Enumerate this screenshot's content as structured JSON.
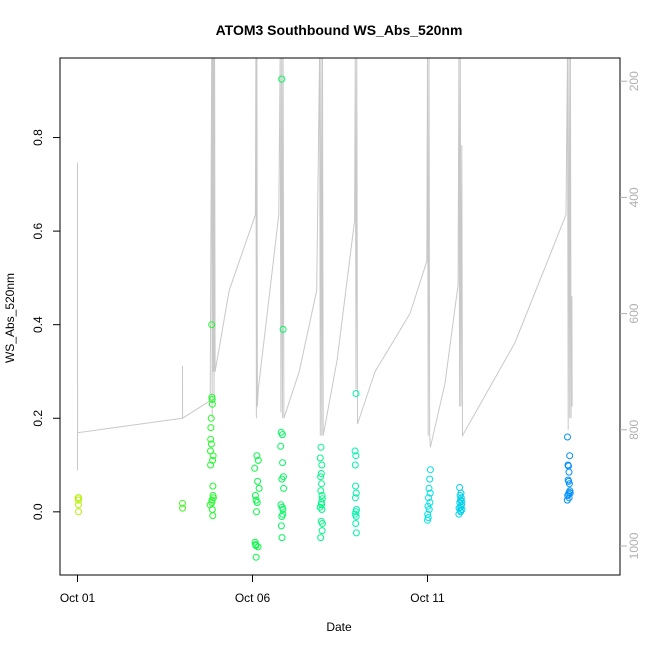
{
  "chart_data": {
    "type": "scatter",
    "title": "ATOM3 Southbound WS_Abs_520nm",
    "xlabel": "Date",
    "ylabel": "WS_Abs_520nm",
    "xlim": [
      "2016-09-30T12:00",
      "2016-10-16T12:00"
    ],
    "ylim": [
      -0.135,
      0.97
    ],
    "y2lim": [
      1050,
      160
    ],
    "y2_reversed": true,
    "x_ticks": [
      {
        "value": "2016-10-01",
        "label": "Oct 01"
      },
      {
        "value": "2016-10-06",
        "label": "Oct 06"
      },
      {
        "value": "2016-10-11",
        "label": "Oct 11"
      }
    ],
    "y_ticks": [
      "0.0",
      "0.2",
      "0.4",
      "0.6",
      "0.8"
    ],
    "y2_ticks": [
      "200",
      "400",
      "600",
      "800",
      "1000"
    ],
    "colors": {
      "secondary_line": "#c8c8c8",
      "axis": "#000000",
      "secondary_tick_label": "#b0b0b0"
    },
    "series": [
      {
        "type": "scatter",
        "marker": "open-circle",
        "color_by": "time",
        "color_scale": [
          "#b5f000",
          "#00ff33",
          "#00f0e0",
          "#0090ff"
        ],
        "points": [
          [
            "2016-10-01T00:30",
            0.03
          ],
          [
            "2016-10-01T00:36",
            0.025
          ],
          [
            "2016-10-01T00:40",
            0.015
          ],
          [
            "2016-10-01T00:44",
            0.0
          ],
          [
            "2016-10-01T00:50",
            0.03
          ],
          [
            "2016-10-04T00:00",
            0.018
          ],
          [
            "2016-10-04T00:05",
            0.008
          ],
          [
            "2016-10-04T20:00",
            0.4
          ],
          [
            "2016-10-04T20:10",
            0.245
          ],
          [
            "2016-10-04T20:20",
            0.24
          ],
          [
            "2016-10-04T20:30",
            0.23
          ],
          [
            "2016-10-04T19:40",
            0.2
          ],
          [
            "2016-10-04T19:30",
            0.18
          ],
          [
            "2016-10-04T19:20",
            0.155
          ],
          [
            "2016-10-04T19:50",
            0.145
          ],
          [
            "2016-10-04T19:10",
            0.13
          ],
          [
            "2016-10-04T21:00",
            0.12
          ],
          [
            "2016-10-04T20:40",
            0.11
          ],
          [
            "2016-10-04T19:15",
            0.1
          ],
          [
            "2016-10-04T20:50",
            0.055
          ],
          [
            "2016-10-04T20:55",
            0.035
          ],
          [
            "2016-10-04T21:10",
            0.03
          ],
          [
            "2016-10-04T20:15",
            0.025
          ],
          [
            "2016-10-04T19:00",
            0.015
          ],
          [
            "2016-10-04T20:05",
            0.02
          ],
          [
            "2016-10-04T20:25",
            0.005
          ],
          [
            "2016-10-04T20:45",
            -0.008
          ],
          [
            "2016-10-06T03:00",
            0.12
          ],
          [
            "2016-10-06T04:00",
            0.11
          ],
          [
            "2016-10-06T01:30",
            0.093
          ],
          [
            "2016-10-06T03:30",
            0.065
          ],
          [
            "2016-10-06T04:30",
            0.05
          ],
          [
            "2016-10-06T02:00",
            0.035
          ],
          [
            "2016-10-06T02:30",
            0.025
          ],
          [
            "2016-10-06T03:15",
            0.02
          ],
          [
            "2016-10-06T02:45",
            0.0
          ],
          [
            "2016-10-06T01:45",
            -0.065
          ],
          [
            "2016-10-06T02:10",
            -0.07
          ],
          [
            "2016-10-06T02:20",
            -0.072
          ],
          [
            "2016-10-06T03:45",
            -0.075
          ],
          [
            "2016-10-06T02:30",
            -0.097
          ],
          [
            "2016-10-06T20:00",
            0.925
          ],
          [
            "2016-10-06T21:00",
            0.39
          ],
          [
            "2016-10-06T19:40",
            0.17
          ],
          [
            "2016-10-06T20:30",
            0.165
          ],
          [
            "2016-10-06T19:20",
            0.14
          ],
          [
            "2016-10-06T20:40",
            0.105
          ],
          [
            "2016-10-06T21:10",
            0.075
          ],
          [
            "2016-10-06T20:10",
            0.07
          ],
          [
            "2016-10-06T21:20",
            0.05
          ],
          [
            "2016-10-06T19:30",
            0.015
          ],
          [
            "2016-10-06T20:20",
            0.01
          ],
          [
            "2016-10-06T20:50",
            0.005
          ],
          [
            "2016-10-06T20:45",
            -0.005
          ],
          [
            "2016-10-06T20:05",
            -0.01
          ],
          [
            "2016-10-06T19:50",
            -0.03
          ],
          [
            "2016-10-06T20:15",
            -0.055
          ],
          [
            "2016-10-07T23:00",
            0.138
          ],
          [
            "2016-10-07T22:30",
            0.115
          ],
          [
            "2016-10-07T23:30",
            0.1
          ],
          [
            "2016-10-07T23:10",
            0.082
          ],
          [
            "2016-10-07T22:40",
            0.075
          ],
          [
            "2016-10-07T23:20",
            0.06
          ],
          [
            "2016-10-07T22:50",
            0.045
          ],
          [
            "2016-10-07T23:40",
            0.035
          ],
          [
            "2016-10-07T23:50",
            0.028
          ],
          [
            "2016-10-07T23:15",
            0.02
          ],
          [
            "2016-10-07T23:25",
            0.015
          ],
          [
            "2016-10-07T22:20",
            0.01
          ],
          [
            "2016-10-07T23:35",
            0.005
          ],
          [
            "2016-10-07T23:05",
            -0.02
          ],
          [
            "2016-10-07T23:55",
            -0.025
          ],
          [
            "2016-10-07T23:45",
            -0.04
          ],
          [
            "2016-10-07T22:45",
            -0.055
          ],
          [
            "2016-10-08T23:00",
            0.253
          ],
          [
            "2016-10-08T22:20",
            0.13
          ],
          [
            "2016-10-08T22:50",
            0.12
          ],
          [
            "2016-10-08T22:30",
            0.1
          ],
          [
            "2016-10-08T22:40",
            0.055
          ],
          [
            "2016-10-08T23:10",
            0.04
          ],
          [
            "2016-10-08T22:35",
            0.03
          ],
          [
            "2016-10-08T23:20",
            0.005
          ],
          [
            "2016-10-08T22:55",
            0.0
          ],
          [
            "2016-10-08T22:25",
            -0.005
          ],
          [
            "2016-10-08T23:05",
            -0.01
          ],
          [
            "2016-10-08T22:45",
            -0.025
          ],
          [
            "2016-10-08T23:15",
            -0.045
          ],
          [
            "2016-10-11T02:00",
            0.09
          ],
          [
            "2016-10-11T01:30",
            0.07
          ],
          [
            "2016-10-11T01:00",
            0.05
          ],
          [
            "2016-10-11T01:50",
            0.04
          ],
          [
            "2016-10-11T00:40",
            0.03
          ],
          [
            "2016-10-11T01:40",
            0.02
          ],
          [
            "2016-10-11T00:20",
            0.012
          ],
          [
            "2016-10-11T01:10",
            0.005
          ],
          [
            "2016-10-11T00:10",
            -0.005
          ],
          [
            "2016-10-11T00:30",
            -0.012
          ],
          [
            "2016-10-11T00:00",
            -0.018
          ],
          [
            "2016-10-11T22:00",
            0.052
          ],
          [
            "2016-10-11T23:00",
            0.04
          ],
          [
            "2016-10-11T22:20",
            0.035
          ],
          [
            "2016-10-11T23:10",
            0.03
          ],
          [
            "2016-10-11T22:40",
            0.025
          ],
          [
            "2016-10-11T23:30",
            0.022
          ],
          [
            "2016-10-11T22:10",
            0.02
          ],
          [
            "2016-10-11T23:20",
            0.015
          ],
          [
            "2016-10-11T22:50",
            0.01
          ],
          [
            "2016-10-11T21:40",
            0.008
          ],
          [
            "2016-10-11T23:40",
            0.005
          ],
          [
            "2016-10-11T22:30",
            0.003
          ],
          [
            "2016-10-11T21:30",
            -0.005
          ],
          [
            "2016-10-11T22:45",
            0.0
          ],
          [
            "2016-10-15T00:00",
            0.16
          ],
          [
            "2016-10-15T01:30",
            0.12
          ],
          [
            "2016-10-15T00:20",
            0.1
          ],
          [
            "2016-10-15T00:40",
            0.098
          ],
          [
            "2016-10-15T01:00",
            0.085
          ],
          [
            "2016-10-15T00:30",
            0.068
          ],
          [
            "2016-10-15T00:50",
            0.065
          ],
          [
            "2016-10-15T01:20",
            0.06
          ],
          [
            "2016-10-15T01:40",
            0.045
          ],
          [
            "2016-10-15T01:10",
            0.042
          ],
          [
            "2016-10-15T00:10",
            0.035
          ],
          [
            "2016-10-15T01:50",
            0.04
          ],
          [
            "2016-10-15T01:05",
            0.03
          ],
          [
            "2016-10-14T23:50",
            0.025
          ],
          [
            "2016-10-15T00:45",
            0.038
          ]
        ]
      },
      {
        "type": "line",
        "axis": "y2",
        "color": "#c8c8c8",
        "points": [
          [
            "2016-10-01T00:00",
            870
          ],
          [
            "2016-10-01T00:01",
            470
          ],
          [
            "2016-10-01T00:02",
            340
          ],
          [
            "2016-10-01T00:03",
            805
          ],
          [
            "2016-10-04T00:00",
            780
          ],
          [
            "2016-10-04T00:01",
            770
          ],
          [
            "2016-10-04T00:02",
            690
          ],
          [
            "2016-10-04T00:03",
            780
          ],
          [
            "2016-10-04T19:00",
            750
          ],
          [
            "2016-10-04T20:00",
            150
          ],
          [
            "2016-10-04T20:20",
            780
          ],
          [
            "2016-10-04T20:40",
            150
          ],
          [
            "2016-10-04T21:00",
            700
          ],
          [
            "2016-10-04T21:20",
            150
          ],
          [
            "2016-10-04T21:40",
            750
          ],
          [
            "2016-10-04T22:00",
            150
          ],
          [
            "2016-10-04T22:20",
            700
          ],
          [
            "2016-10-05T08:00",
            560
          ],
          [
            "2016-10-06T02:00",
            430
          ],
          [
            "2016-10-06T02:20",
            150
          ],
          [
            "2016-10-06T02:40",
            780
          ],
          [
            "2016-10-06T03:00",
            150
          ],
          [
            "2016-10-06T03:20",
            760
          ],
          [
            "2016-10-06T04:00",
            730
          ],
          [
            "2016-10-06T18:00",
            430
          ],
          [
            "2016-10-06T19:00",
            150
          ],
          [
            "2016-10-06T19:30",
            770
          ],
          [
            "2016-10-06T20:00",
            150
          ],
          [
            "2016-10-06T20:30",
            780
          ],
          [
            "2016-10-06T21:00",
            150
          ],
          [
            "2016-10-06T21:30",
            780
          ],
          [
            "2016-10-07T08:00",
            700
          ],
          [
            "2016-10-07T20:00",
            560
          ],
          [
            "2016-10-07T22:00",
            150
          ],
          [
            "2016-10-07T22:30",
            810
          ],
          [
            "2016-10-07T23:00",
            150
          ],
          [
            "2016-10-07T23:30",
            810
          ],
          [
            "2016-10-08T00:00",
            150
          ],
          [
            "2016-10-08T00:30",
            810
          ],
          [
            "2016-10-08T10:00",
            680
          ],
          [
            "2016-10-08T22:00",
            440
          ],
          [
            "2016-10-08T22:30",
            150
          ],
          [
            "2016-10-08T23:00",
            730
          ],
          [
            "2016-10-08T23:30",
            150
          ],
          [
            "2016-10-09T00:00",
            790
          ],
          [
            "2016-10-09T12:00",
            700
          ],
          [
            "2016-10-10T12:00",
            600
          ],
          [
            "2016-10-10T23:30",
            510
          ],
          [
            "2016-10-11T00:00",
            150
          ],
          [
            "2016-10-11T00:30",
            810
          ],
          [
            "2016-10-11T01:00",
            150
          ],
          [
            "2016-10-11T01:30",
            810
          ],
          [
            "2016-10-11T02:00",
            830
          ],
          [
            "2016-10-11T12:00",
            720
          ],
          [
            "2016-10-11T21:00",
            550
          ],
          [
            "2016-10-11T21:30",
            150
          ],
          [
            "2016-10-11T22:00",
            760
          ],
          [
            "2016-10-11T22:30",
            150
          ],
          [
            "2016-10-11T23:00",
            760
          ],
          [
            "2016-10-11T23:30",
            310
          ],
          [
            "2016-10-12T00:00",
            810
          ],
          [
            "2016-10-13T12:00",
            650
          ],
          [
            "2016-10-14T23:00",
            430
          ],
          [
            "2016-10-15T00:00",
            150
          ],
          [
            "2016-10-15T00:30",
            800
          ],
          [
            "2016-10-15T01:00",
            150
          ],
          [
            "2016-10-15T01:30",
            780
          ],
          [
            "2016-10-15T02:00",
            150
          ],
          [
            "2016-10-15T02:30",
            780
          ],
          [
            "2016-10-15T03:00",
            570
          ],
          [
            "2016-10-15T03:10",
            760
          ]
        ]
      }
    ]
  }
}
